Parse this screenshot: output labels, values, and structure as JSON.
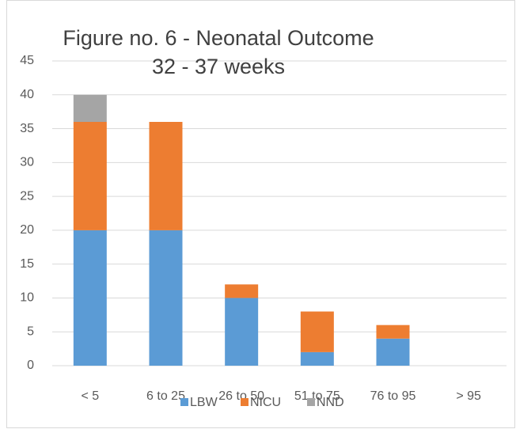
{
  "chart_data": {
    "type": "stacked_bar",
    "title": "Figure no. 6 - Neonatal Outcome 32 - 37 weeks",
    "categories": [
      "< 5",
      "6 to 25",
      "26 to 50",
      "51 to 75",
      "76 to 95",
      "> 95"
    ],
    "series": [
      {
        "name": "LBW",
        "color": "#5b9bd5",
        "values": [
          20,
          20,
          10,
          2,
          4,
          0
        ]
      },
      {
        "name": "NICU",
        "color": "#ed7d31",
        "values": [
          16,
          16,
          2,
          6,
          2,
          0
        ]
      },
      {
        "name": "NND",
        "color": "#a5a5a5",
        "values": [
          4,
          0,
          0,
          0,
          0,
          0
        ]
      }
    ],
    "ylim": [
      0,
      45
    ],
    "yticks": [
      0,
      5,
      10,
      15,
      20,
      25,
      30,
      35,
      40,
      45
    ],
    "grid": true,
    "legend": "bottom"
  }
}
